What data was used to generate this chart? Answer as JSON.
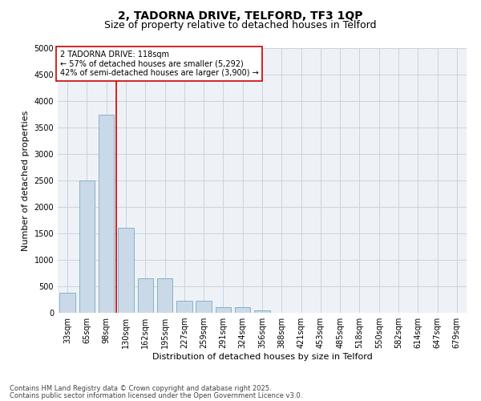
{
  "title": "2, TADORNA DRIVE, TELFORD, TF3 1QP",
  "subtitle": "Size of property relative to detached houses in Telford",
  "xlabel": "Distribution of detached houses by size in Telford",
  "ylabel": "Number of detached properties",
  "categories": [
    "33sqm",
    "65sqm",
    "98sqm",
    "130sqm",
    "162sqm",
    "195sqm",
    "227sqm",
    "259sqm",
    "291sqm",
    "324sqm",
    "356sqm",
    "388sqm",
    "421sqm",
    "453sqm",
    "485sqm",
    "518sqm",
    "550sqm",
    "582sqm",
    "614sqm",
    "647sqm",
    "679sqm"
  ],
  "values": [
    375,
    2500,
    3750,
    1600,
    650,
    650,
    225,
    225,
    100,
    100,
    50,
    0,
    0,
    0,
    0,
    0,
    0,
    0,
    0,
    0,
    0
  ],
  "bar_color": "#c9d9e8",
  "bar_edge_color": "#7aaabf",
  "red_line_color": "#cc0000",
  "red_line_x": 2.5,
  "ylim": [
    0,
    5000
  ],
  "yticks": [
    0,
    500,
    1000,
    1500,
    2000,
    2500,
    3000,
    3500,
    4000,
    4500,
    5000
  ],
  "annotation_title": "2 TADORNA DRIVE: 118sqm",
  "annotation_line1": "← 57% of detached houses are smaller (5,292)",
  "annotation_line2": "42% of semi-detached houses are larger (3,900) →",
  "annotation_box_color": "#cc0000",
  "grid_color": "#c8d4e0",
  "background_color": "#eef2f7",
  "footnote1": "Contains HM Land Registry data © Crown copyright and database right 2025.",
  "footnote2": "Contains public sector information licensed under the Open Government Licence v3.0.",
  "title_fontsize": 10,
  "subtitle_fontsize": 9,
  "ylabel_fontsize": 8,
  "xlabel_fontsize": 8,
  "tick_fontsize": 7,
  "annot_fontsize": 7,
  "footnote_fontsize": 6
}
